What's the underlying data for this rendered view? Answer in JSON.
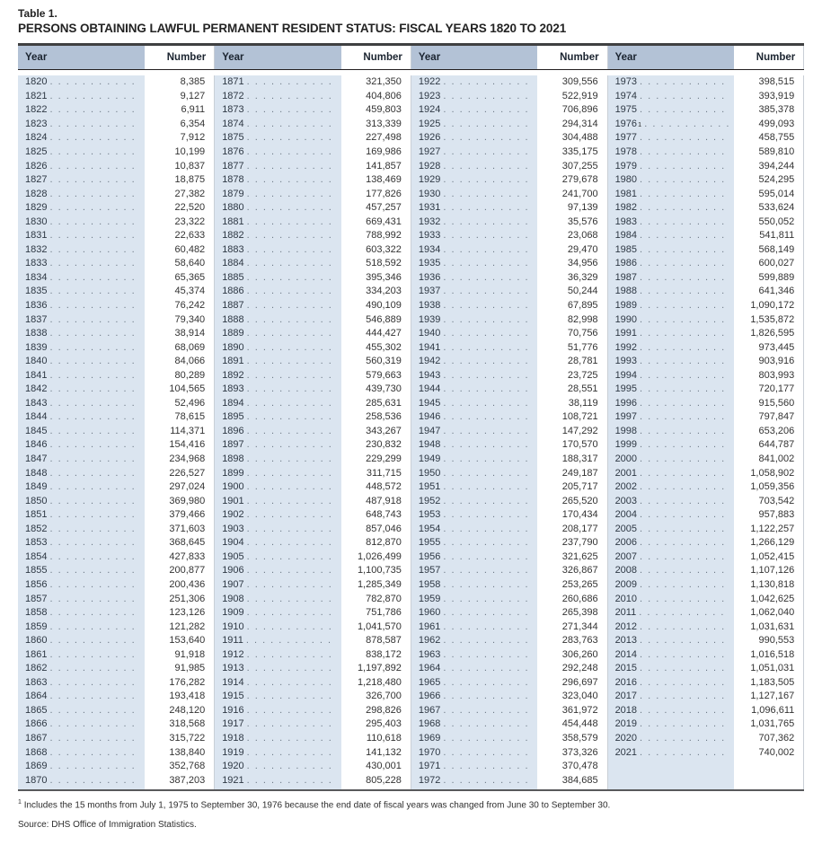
{
  "title": {
    "line1": "Table 1.",
    "line2": "PERSONS OBTAINING LAWFUL PERMANENT RESIDENT STATUS: FISCAL YEARS 1820 TO 2021"
  },
  "table": {
    "column_headers": {
      "year": "Year",
      "number": "Number"
    },
    "pairs": [
      [
        [
          "1820",
          "8,385"
        ],
        [
          "1821",
          "9,127"
        ],
        [
          "1822",
          "6,911"
        ],
        [
          "1823",
          "6,354"
        ],
        [
          "1824",
          "7,912"
        ],
        [
          "1825",
          "10,199"
        ],
        [
          "1826",
          "10,837"
        ],
        [
          "1827",
          "18,875"
        ],
        [
          "1828",
          "27,382"
        ],
        [
          "1829",
          "22,520"
        ],
        [
          "1830",
          "23,322"
        ],
        [
          "1831",
          "22,633"
        ],
        [
          "1832",
          "60,482"
        ],
        [
          "1833",
          "58,640"
        ],
        [
          "1834",
          "65,365"
        ],
        [
          "1835",
          "45,374"
        ],
        [
          "1836",
          "76,242"
        ],
        [
          "1837",
          "79,340"
        ],
        [
          "1838",
          "38,914"
        ],
        [
          "1839",
          "68,069"
        ],
        [
          "1840",
          "84,066"
        ],
        [
          "1841",
          "80,289"
        ],
        [
          "1842",
          "104,565"
        ],
        [
          "1843",
          "52,496"
        ],
        [
          "1844",
          "78,615"
        ],
        [
          "1845",
          "114,371"
        ],
        [
          "1846",
          "154,416"
        ],
        [
          "1847",
          "234,968"
        ],
        [
          "1848",
          "226,527"
        ],
        [
          "1849",
          "297,024"
        ],
        [
          "1850",
          "369,980"
        ],
        [
          "1851",
          "379,466"
        ],
        [
          "1852",
          "371,603"
        ],
        [
          "1853",
          "368,645"
        ],
        [
          "1854",
          "427,833"
        ],
        [
          "1855",
          "200,877"
        ],
        [
          "1856",
          "200,436"
        ],
        [
          "1857",
          "251,306"
        ],
        [
          "1858",
          "123,126"
        ],
        [
          "1859",
          "121,282"
        ],
        [
          "1860",
          "153,640"
        ],
        [
          "1861",
          "91,918"
        ],
        [
          "1862",
          "91,985"
        ],
        [
          "1863",
          "176,282"
        ],
        [
          "1864",
          "193,418"
        ],
        [
          "1865",
          "248,120"
        ],
        [
          "1866",
          "318,568"
        ],
        [
          "1867",
          "315,722"
        ],
        [
          "1868",
          "138,840"
        ],
        [
          "1869",
          "352,768"
        ],
        [
          "1870",
          "387,203"
        ]
      ],
      [
        [
          "1871",
          "321,350"
        ],
        [
          "1872",
          "404,806"
        ],
        [
          "1873",
          "459,803"
        ],
        [
          "1874",
          "313,339"
        ],
        [
          "1875",
          "227,498"
        ],
        [
          "1876",
          "169,986"
        ],
        [
          "1877",
          "141,857"
        ],
        [
          "1878",
          "138,469"
        ],
        [
          "1879",
          "177,826"
        ],
        [
          "1880",
          "457,257"
        ],
        [
          "1881",
          "669,431"
        ],
        [
          "1882",
          "788,992"
        ],
        [
          "1883",
          "603,322"
        ],
        [
          "1884",
          "518,592"
        ],
        [
          "1885",
          "395,346"
        ],
        [
          "1886",
          "334,203"
        ],
        [
          "1887",
          "490,109"
        ],
        [
          "1888",
          "546,889"
        ],
        [
          "1889",
          "444,427"
        ],
        [
          "1890",
          "455,302"
        ],
        [
          "1891",
          "560,319"
        ],
        [
          "1892",
          "579,663"
        ],
        [
          "1893",
          "439,730"
        ],
        [
          "1894",
          "285,631"
        ],
        [
          "1895",
          "258,536"
        ],
        [
          "1896",
          "343,267"
        ],
        [
          "1897",
          "230,832"
        ],
        [
          "1898",
          "229,299"
        ],
        [
          "1899",
          "311,715"
        ],
        [
          "1900",
          "448,572"
        ],
        [
          "1901",
          "487,918"
        ],
        [
          "1902",
          "648,743"
        ],
        [
          "1903",
          "857,046"
        ],
        [
          "1904",
          "812,870"
        ],
        [
          "1905",
          "1,026,499"
        ],
        [
          "1906",
          "1,100,735"
        ],
        [
          "1907",
          "1,285,349"
        ],
        [
          "1908",
          "782,870"
        ],
        [
          "1909",
          "751,786"
        ],
        [
          "1910",
          "1,041,570"
        ],
        [
          "1911",
          "878,587"
        ],
        [
          "1912",
          "838,172"
        ],
        [
          "1913",
          "1,197,892"
        ],
        [
          "1914",
          "1,218,480"
        ],
        [
          "1915",
          "326,700"
        ],
        [
          "1916",
          "298,826"
        ],
        [
          "1917",
          "295,403"
        ],
        [
          "1918",
          "110,618"
        ],
        [
          "1919",
          "141,132"
        ],
        [
          "1920",
          "430,001"
        ],
        [
          "1921",
          "805,228"
        ]
      ],
      [
        [
          "1922",
          "309,556"
        ],
        [
          "1923",
          "522,919"
        ],
        [
          "1924",
          "706,896"
        ],
        [
          "1925",
          "294,314"
        ],
        [
          "1926",
          "304,488"
        ],
        [
          "1927",
          "335,175"
        ],
        [
          "1928",
          "307,255"
        ],
        [
          "1929",
          "279,678"
        ],
        [
          "1930",
          "241,700"
        ],
        [
          "1931",
          "97,139"
        ],
        [
          "1932",
          "35,576"
        ],
        [
          "1933",
          "23,068"
        ],
        [
          "1934",
          "29,470"
        ],
        [
          "1935",
          "34,956"
        ],
        [
          "1936",
          "36,329"
        ],
        [
          "1937",
          "50,244"
        ],
        [
          "1938",
          "67,895"
        ],
        [
          "1939",
          "82,998"
        ],
        [
          "1940",
          "70,756"
        ],
        [
          "1941",
          "51,776"
        ],
        [
          "1942",
          "28,781"
        ],
        [
          "1943",
          "23,725"
        ],
        [
          "1944",
          "28,551"
        ],
        [
          "1945",
          "38,119"
        ],
        [
          "1946",
          "108,721"
        ],
        [
          "1947",
          "147,292"
        ],
        [
          "1948",
          "170,570"
        ],
        [
          "1949",
          "188,317"
        ],
        [
          "1950",
          "249,187"
        ],
        [
          "1951",
          "205,717"
        ],
        [
          "1952",
          "265,520"
        ],
        [
          "1953",
          "170,434"
        ],
        [
          "1954",
          "208,177"
        ],
        [
          "1955",
          "237,790"
        ],
        [
          "1956",
          "321,625"
        ],
        [
          "1957",
          "326,867"
        ],
        [
          "1958",
          "253,265"
        ],
        [
          "1959",
          "260,686"
        ],
        [
          "1960",
          "265,398"
        ],
        [
          "1961",
          "271,344"
        ],
        [
          "1962",
          "283,763"
        ],
        [
          "1963",
          "306,260"
        ],
        [
          "1964",
          "292,248"
        ],
        [
          "1965",
          "296,697"
        ],
        [
          "1966",
          "323,040"
        ],
        [
          "1967",
          "361,972"
        ],
        [
          "1968",
          "454,448"
        ],
        [
          "1969",
          "358,579"
        ],
        [
          "1970",
          "373,326"
        ],
        [
          "1971",
          "370,478"
        ],
        [
          "1972",
          "384,685"
        ]
      ],
      [
        [
          "1973",
          "398,515"
        ],
        [
          "1974",
          "393,919"
        ],
        [
          "1975",
          "385,378"
        ],
        [
          "1976",
          "499,093",
          "1"
        ],
        [
          "1977",
          "458,755"
        ],
        [
          "1978",
          "589,810"
        ],
        [
          "1979",
          "394,244"
        ],
        [
          "1980",
          "524,295"
        ],
        [
          "1981",
          "595,014"
        ],
        [
          "1982",
          "533,624"
        ],
        [
          "1983",
          "550,052"
        ],
        [
          "1984",
          "541,811"
        ],
        [
          "1985",
          "568,149"
        ],
        [
          "1986",
          "600,027"
        ],
        [
          "1987",
          "599,889"
        ],
        [
          "1988",
          "641,346"
        ],
        [
          "1989",
          "1,090,172"
        ],
        [
          "1990",
          "1,535,872"
        ],
        [
          "1991",
          "1,826,595"
        ],
        [
          "1992",
          "973,445"
        ],
        [
          "1993",
          "903,916"
        ],
        [
          "1994",
          "803,993"
        ],
        [
          "1995",
          "720,177"
        ],
        [
          "1996",
          "915,560"
        ],
        [
          "1997",
          "797,847"
        ],
        [
          "1998",
          "653,206"
        ],
        [
          "1999",
          "644,787"
        ],
        [
          "2000",
          "841,002"
        ],
        [
          "2001",
          "1,058,902"
        ],
        [
          "2002",
          "1,059,356"
        ],
        [
          "2003",
          "703,542"
        ],
        [
          "2004",
          "957,883"
        ],
        [
          "2005",
          "1,122,257"
        ],
        [
          "2006",
          "1,266,129"
        ],
        [
          "2007",
          "1,052,415"
        ],
        [
          "2008",
          "1,107,126"
        ],
        [
          "2009",
          "1,130,818"
        ],
        [
          "2010",
          "1,042,625"
        ],
        [
          "2011",
          "1,062,040"
        ],
        [
          "2012",
          "1,031,631"
        ],
        [
          "2013",
          "990,553"
        ],
        [
          "2014",
          "1,016,518"
        ],
        [
          "2015",
          "1,051,031"
        ],
        [
          "2016",
          "1,183,505"
        ],
        [
          "2017",
          "1,127,167"
        ],
        [
          "2018",
          "1,096,611"
        ],
        [
          "2019",
          "1,031,765"
        ],
        [
          "2020",
          "707,362"
        ],
        [
          "2021",
          "740,002"
        ]
      ]
    ]
  },
  "footnote": {
    "marker": "1",
    "text": "Includes the 15 months from July 1, 1975 to September 30, 1976 because the end date of fiscal years was changed from June 30 to September 30."
  },
  "source": "Source: DHS Office of Immigration Statistics.",
  "colors": {
    "header_bg": "#b3c2d6",
    "year_column_bg": "#dbe5f0",
    "rule_dark": "#3f4041"
  }
}
